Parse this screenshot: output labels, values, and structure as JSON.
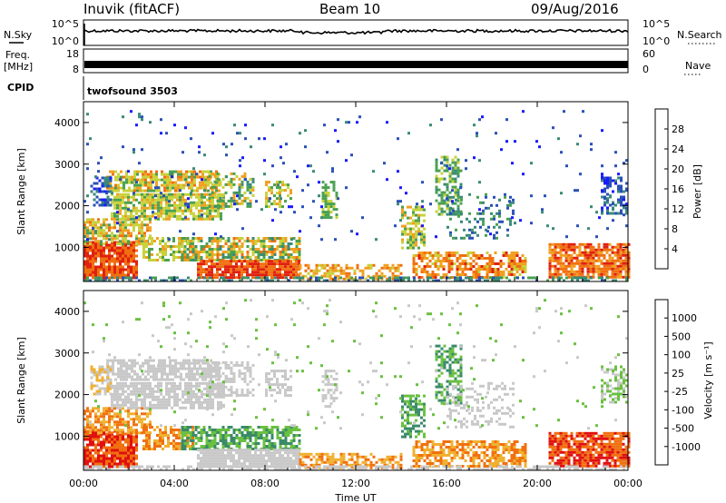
{
  "header": {
    "station": "Inuvik (fitACF)",
    "beam": "Beam 10",
    "date": "09/Aug/2016"
  },
  "top_panels": {
    "nsky_label": "N.Sky",
    "nsky_ticks": [
      "10^5",
      "10^0"
    ],
    "nsearch_label": "N.Search",
    "nsearch_ticks": [
      "10^5",
      "10^0"
    ],
    "freq_label_1": "Freq.",
    "freq_label_2": "[MHz]",
    "freq_ticks": [
      "18",
      "8"
    ],
    "nave_label": "Nave",
    "nave_ticks": [
      "60",
      "0"
    ],
    "cpid_label": "CPID",
    "cpid_value": "twofsound 3503"
  },
  "chart_data": [
    {
      "type": "heatmap",
      "name": "power",
      "ylabel": "Slant Range [km]",
      "yticks": [
        "1000",
        "2000",
        "3000",
        "4000"
      ],
      "ylim": [
        180,
        4500
      ],
      "xlim_hours": [
        0,
        24
      ],
      "colorbar_label": "Power [dB]",
      "colorbar_ticks": [
        "4",
        "8",
        "12",
        "16",
        "20",
        "24",
        "28"
      ],
      "colors": [
        "#1a1aff",
        "#2a50b8",
        "#3a8a7a",
        "#4aa050",
        "#c8d23c",
        "#f0a020",
        "#f07010",
        "#e02010"
      ]
    },
    {
      "type": "heatmap",
      "name": "velocity",
      "ylabel": "Slant Range [km]",
      "yticks": [
        "1000",
        "2000",
        "3000",
        "4000"
      ],
      "ylim": [
        180,
        4500
      ],
      "xlim_hours": [
        0,
        24
      ],
      "colorbar_label": "Velocity [m s⁻¹]",
      "colorbar_ticks": [
        "1000",
        "500",
        "100",
        "25",
        "-25",
        "-100",
        "-500",
        "-1000"
      ],
      "colors": [
        "#1a2aa0",
        "#2a5a9a",
        "#3a8a6a",
        "#6ac040",
        "#c8c8c8",
        "#f0b030",
        "#f07010",
        "#e01010"
      ]
    }
  ],
  "xaxis": {
    "xticks": [
      "00:00",
      "04:00",
      "08:00",
      "12:00",
      "16:00",
      "20:00",
      "00:00"
    ],
    "xlabel": "Time UT"
  }
}
